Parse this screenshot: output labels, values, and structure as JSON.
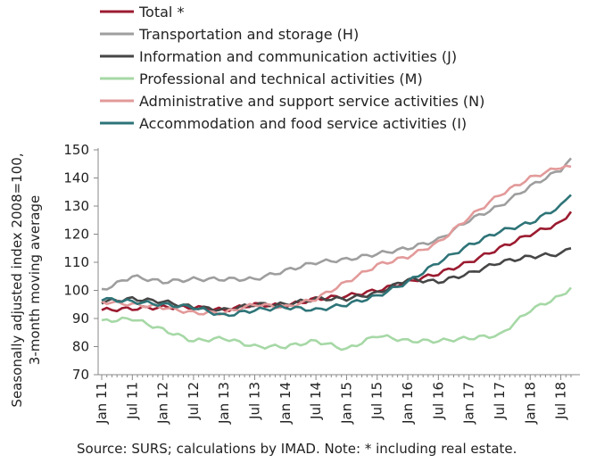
{
  "chart_data": {
    "type": "line",
    "title": "",
    "ylabel_line1": "Seasonally adjusted index 2008=100,",
    "ylabel_line2": "3-month moving average",
    "xlabel": "",
    "ylim": [
      70,
      150
    ],
    "yticks": [
      70,
      80,
      90,
      100,
      110,
      120,
      130,
      140,
      150
    ],
    "x_start": "Jan 11",
    "x_end": "Sep 18",
    "x_ticks": [
      "Jan 11",
      "Jul 11",
      "Jan 12",
      "Jul 12",
      "Jan 13",
      "Jul 13",
      "Jan 14",
      "Jul 14",
      "Jan 15",
      "Jul 15",
      "Jan 16",
      "Jul 16",
      "Jan 17",
      "Jul 17",
      "Jan 18",
      "Jul 18"
    ],
    "grid": false,
    "legend_position": "top-left",
    "source": "Source:  SURS; calculations by IMAD. Note: * including real estate.",
    "series": [
      {
        "name": "Total *",
        "color": "#9b1b30",
        "knots": [
          [
            "Jan 11",
            93
          ],
          [
            "Jul 11",
            93.5
          ],
          [
            "Jan 12",
            94
          ],
          [
            "Jul 12",
            94
          ],
          [
            "Jan 13",
            93
          ],
          [
            "Jul 13",
            95
          ],
          [
            "Jan 14",
            94.5
          ],
          [
            "Jul 14",
            97
          ],
          [
            "Jan 15",
            98
          ],
          [
            "Jul 15",
            100
          ],
          [
            "Jan 16",
            103
          ],
          [
            "Jul 16",
            106
          ],
          [
            "Jan 17",
            110
          ],
          [
            "Jul 17",
            115
          ],
          [
            "Jan 18",
            120
          ],
          [
            "Jul 18",
            124
          ],
          [
            "Sep 18",
            128
          ]
        ]
      },
      {
        "name": "Transportation and storage (H)",
        "color": "#9e9e9e",
        "knots": [
          [
            "Jan 11",
            100
          ],
          [
            "Jul 11",
            105
          ],
          [
            "Jan 12",
            103
          ],
          [
            "Jul 12",
            104
          ],
          [
            "Jan 13",
            104
          ],
          [
            "Jul 13",
            104
          ],
          [
            "Jan 14",
            107
          ],
          [
            "Jul 14",
            110
          ],
          [
            "Jan 15",
            111
          ],
          [
            "Jul 15",
            113
          ],
          [
            "Jan 16",
            115
          ],
          [
            "Jul 16",
            118
          ],
          [
            "Jan 17",
            125
          ],
          [
            "Jul 17",
            130
          ],
          [
            "Jan 18",
            137
          ],
          [
            "Jul 18",
            143
          ],
          [
            "Sep 18",
            147
          ]
        ]
      },
      {
        "name": "Information and communication activities (J)",
        "color": "#464646",
        "knots": [
          [
            "Jan 11",
            96
          ],
          [
            "Jul 11",
            97
          ],
          [
            "Jan 12",
            96
          ],
          [
            "Jul 12",
            94
          ],
          [
            "Jan 13",
            93
          ],
          [
            "Jul 13",
            95
          ],
          [
            "Jan 14",
            95
          ],
          [
            "Jul 14",
            97
          ],
          [
            "Jan 15",
            97
          ],
          [
            "Jul 15",
            99
          ],
          [
            "Jan 16",
            104
          ],
          [
            "Jul 16",
            103
          ],
          [
            "Jan 17",
            106
          ],
          [
            "Jul 17",
            110
          ],
          [
            "Jan 18",
            112
          ],
          [
            "Jul 18",
            113
          ],
          [
            "Sep 18",
            115
          ]
        ]
      },
      {
        "name": "Professional and technical activities (M)",
        "color": "#a6d8a6",
        "knots": [
          [
            "Jan 11",
            89
          ],
          [
            "Jul 11",
            90
          ],
          [
            "Jan 12",
            86
          ],
          [
            "Jul 12",
            82
          ],
          [
            "Jan 13",
            83
          ],
          [
            "Jul 13",
            80
          ],
          [
            "Jan 14",
            80
          ],
          [
            "Jul 14",
            82
          ],
          [
            "Jan 15",
            79
          ],
          [
            "Jul 15",
            84
          ],
          [
            "Jan 16",
            82
          ],
          [
            "Jul 16",
            82
          ],
          [
            "Jan 17",
            83
          ],
          [
            "Jul 17",
            84
          ],
          [
            "Jan 18",
            93
          ],
          [
            "Jul 18",
            98
          ],
          [
            "Sep 18",
            101
          ]
        ]
      },
      {
        "name": "Administrative and support service activities (N)",
        "color": "#e39a9a",
        "knots": [
          [
            "Jan 11",
            96
          ],
          [
            "Jul 11",
            95
          ],
          [
            "Jan 12",
            94
          ],
          [
            "Jul 12",
            92
          ],
          [
            "Jan 13",
            92
          ],
          [
            "Jul 13",
            95
          ],
          [
            "Jan 14",
            94
          ],
          [
            "Jul 14",
            97
          ],
          [
            "Jan 15",
            103
          ],
          [
            "Jul 15",
            109
          ],
          [
            "Jan 16",
            112
          ],
          [
            "Jul 16",
            117
          ],
          [
            "Jan 17",
            126
          ],
          [
            "Jul 17",
            134
          ],
          [
            "Jan 18",
            140
          ],
          [
            "Jul 18",
            144
          ],
          [
            "Sep 18",
            144
          ]
        ]
      },
      {
        "name": "Accommodation and food service activities (I)",
        "color": "#2e7478",
        "knots": [
          [
            "Jan 11",
            97
          ],
          [
            "Jul 11",
            96
          ],
          [
            "Jan 12",
            95
          ],
          [
            "Jul 12",
            94
          ],
          [
            "Jan 13",
            91
          ],
          [
            "Jul 13",
            93
          ],
          [
            "Jan 14",
            94
          ],
          [
            "Jul 14",
            93
          ],
          [
            "Jan 15",
            95
          ],
          [
            "Jul 15",
            98
          ],
          [
            "Jan 16",
            103
          ],
          [
            "Jul 16",
            110
          ],
          [
            "Jan 17",
            116
          ],
          [
            "Jul 17",
            121
          ],
          [
            "Jan 18",
            124
          ],
          [
            "Jul 18",
            130
          ],
          [
            "Sep 18",
            134
          ]
        ]
      }
    ]
  }
}
